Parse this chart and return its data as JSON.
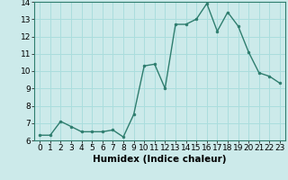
{
  "xlabel": "Humidex (Indice chaleur)",
  "x": [
    0,
    1,
    2,
    3,
    4,
    5,
    6,
    7,
    8,
    9,
    10,
    11,
    12,
    13,
    14,
    15,
    16,
    17,
    18,
    19,
    20,
    21,
    22,
    23
  ],
  "y": [
    6.3,
    6.3,
    7.1,
    6.8,
    6.5,
    6.5,
    6.5,
    6.6,
    6.2,
    7.5,
    10.3,
    10.4,
    9.0,
    12.7,
    12.7,
    13.0,
    13.9,
    12.3,
    13.4,
    12.6,
    11.1,
    9.9,
    9.7,
    9.3
  ],
  "line_color": "#2e7d6e",
  "marker": "o",
  "marker_size": 2.0,
  "bg_color": "#cceaea",
  "grid_color": "#aadddd",
  "ylim": [
    6,
    14
  ],
  "yticks": [
    6,
    7,
    8,
    9,
    10,
    11,
    12,
    13,
    14
  ],
  "xlim": [
    -0.5,
    23.5
  ],
  "xticks": [
    0,
    1,
    2,
    3,
    4,
    5,
    6,
    7,
    8,
    9,
    10,
    11,
    12,
    13,
    14,
    15,
    16,
    17,
    18,
    19,
    20,
    21,
    22,
    23
  ],
  "tick_fontsize": 6.5,
  "label_fontsize": 7.5
}
